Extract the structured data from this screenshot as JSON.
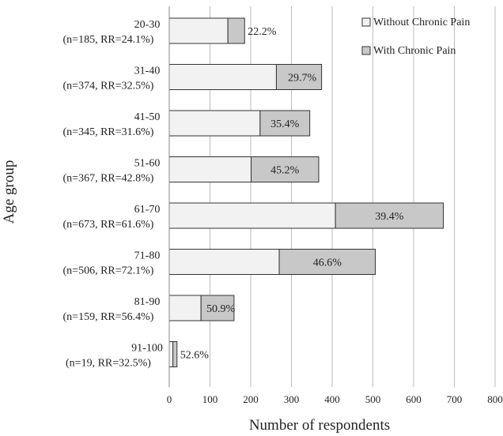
{
  "chart_data": {
    "type": "bar",
    "stacked": true,
    "orientation": "horizontal",
    "xlabel": "Number of respondents",
    "ylabel": "Age group",
    "xlim": [
      0,
      800
    ],
    "xticks": [
      0,
      100,
      200,
      300,
      400,
      500,
      600,
      700,
      800
    ],
    "grid": "vertical",
    "legend_position": "top-right",
    "categories": [
      {
        "age": "20-30",
        "info": "(n=185, RR=24.1%)"
      },
      {
        "age": "31-40",
        "info": "(n=374, RR=32.5%)"
      },
      {
        "age": "41-50",
        "info": "(n=345, RR=31.6%)"
      },
      {
        "age": "51-60",
        "info": "(n=367, RR=42.8%)"
      },
      {
        "age": "61-70",
        "info": "(n=673, RR=61.6%)"
      },
      {
        "age": "71-80",
        "info": "(n=506, RR=72.1%)"
      },
      {
        "age": "81-90",
        "info": "(n=159, RR=56.4%)"
      },
      {
        "age": "91-100",
        "info": "(n=19, RR=32.5%)"
      }
    ],
    "series": [
      {
        "name": "Without Chronic Pain",
        "color": "#f2f2f2",
        "values": [
          144,
          263,
          223,
          201,
          408,
          270,
          78,
          9
        ]
      },
      {
        "name": "With Chronic Pain",
        "color": "#c8c8c8",
        "values": [
          41,
          111,
          122,
          166,
          265,
          236,
          81,
          10
        ]
      }
    ],
    "data_labels": [
      "22.2%",
      "29.7%",
      "35.4%",
      "45.2%",
      "39.4%",
      "46.6%",
      "50.9%",
      "52.6%"
    ]
  }
}
